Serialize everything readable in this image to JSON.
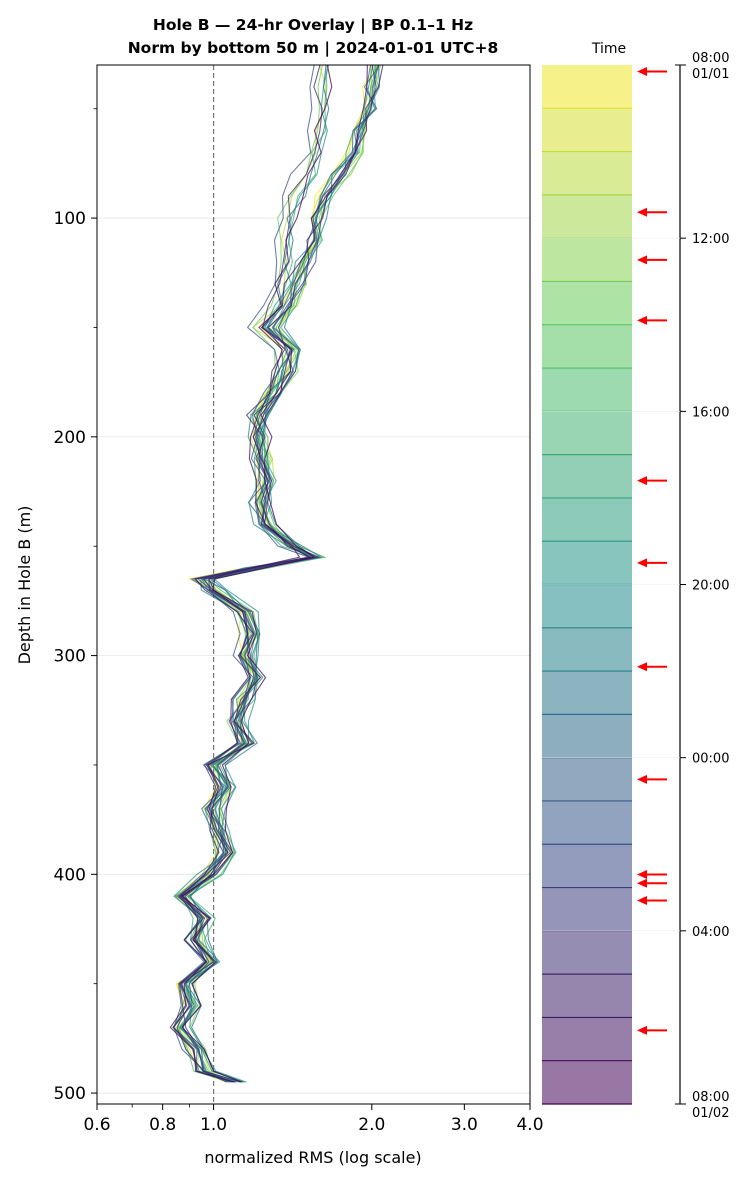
{
  "chart_data": {
    "type": "line",
    "title_line1": "Hole B — 24-hr Overlay  |  BP 0.1–1 Hz",
    "title_line2": "Norm by bottom 50 m  |  2024-01-01 UTC+8",
    "xlabel": "normalized RMS  (log scale)",
    "ylabel": "Depth in Hole B (m)",
    "x_scale": "log",
    "xlim": [
      0.6,
      4.0
    ],
    "ylim": [
      505,
      30
    ],
    "x_ticks": [
      0.6,
      0.8,
      1.0,
      2.0,
      3.0,
      4.0
    ],
    "x_tick_labels": [
      "0.6",
      "0.8",
      "1.0",
      "2.0",
      "3.0",
      "4.0"
    ],
    "y_ticks": [
      100,
      200,
      300,
      400,
      500
    ],
    "y_tick_labels": [
      "100",
      "200",
      "300",
      "400",
      "500"
    ],
    "reference_line_x": 1.0,
    "grid": "horizontal",
    "depth_profile": {
      "depths": [
        30,
        40,
        50,
        60,
        70,
        80,
        90,
        100,
        110,
        120,
        130,
        140,
        150,
        160,
        170,
        180,
        190,
        200,
        210,
        220,
        230,
        240,
        250,
        255,
        260,
        265,
        270,
        280,
        290,
        300,
        310,
        320,
        330,
        340,
        350,
        360,
        370,
        380,
        390,
        400,
        410,
        420,
        430,
        440,
        450,
        460,
        470,
        480,
        490,
        495
      ],
      "rms": [
        2.05,
        2.0,
        1.98,
        1.9,
        1.85,
        1.75,
        1.65,
        1.58,
        1.55,
        1.5,
        1.45,
        1.4,
        1.3,
        1.42,
        1.38,
        1.3,
        1.22,
        1.22,
        1.24,
        1.25,
        1.22,
        1.25,
        1.4,
        1.55,
        1.2,
        0.95,
        1.0,
        1.15,
        1.18,
        1.15,
        1.2,
        1.14,
        1.1,
        1.15,
        1.0,
        1.05,
        1.0,
        1.02,
        1.05,
        0.98,
        0.86,
        0.95,
        0.92,
        0.98,
        0.88,
        0.9,
        0.86,
        0.92,
        0.95,
        1.1
      ]
    },
    "series_count": 24,
    "colorbar": {
      "label": "Time",
      "colormap": "viridis",
      "tick_labels": [
        "08:00\n01/01",
        "12:00",
        "16:00",
        "20:00",
        "00:00",
        "04:00",
        "08:00\n01/02"
      ],
      "tick_hours": [
        0,
        4,
        8,
        12,
        16,
        20,
        24
      ]
    },
    "event_marker_hours": [
      0.15,
      3.4,
      4.5,
      5.9,
      9.6,
      11.5,
      13.9,
      16.5,
      18.7,
      18.9,
      19.3,
      22.3
    ],
    "event_marker_color": "#ff0000"
  }
}
